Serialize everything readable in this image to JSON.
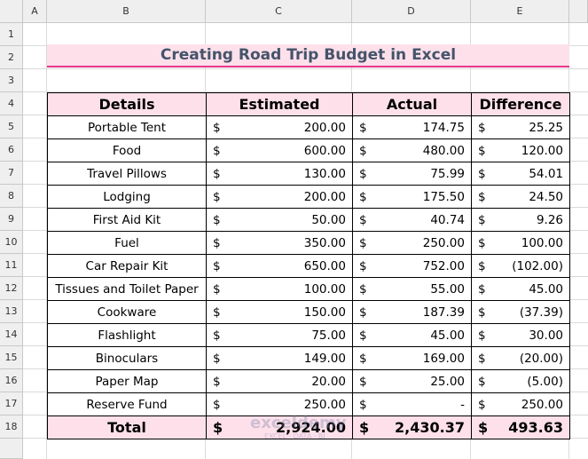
{
  "spreadsheet": {
    "column_headers": [
      "A",
      "B",
      "C",
      "D",
      "E"
    ],
    "row_numbers": [
      1,
      2,
      3,
      4,
      5,
      6,
      7,
      8,
      9,
      10,
      11,
      12,
      13,
      14,
      15,
      16,
      17,
      18
    ]
  },
  "title": "Creating Road Trip Budget in Excel",
  "currency": "$",
  "table": {
    "header": [
      "Details",
      "Estimated",
      "Actual",
      "Difference"
    ],
    "rows": [
      [
        "Portable Tent",
        "200.00",
        "174.75",
        "25.25"
      ],
      [
        "Food",
        "600.00",
        "480.00",
        "120.00"
      ],
      [
        "Travel Pillows",
        "130.00",
        "75.99",
        "54.01"
      ],
      [
        "Lodging",
        "200.00",
        "175.50",
        "24.50"
      ],
      [
        "First Aid Kit",
        "50.00",
        "40.74",
        "9.26"
      ],
      [
        "Fuel",
        "350.00",
        "250.00",
        "100.00"
      ],
      [
        "Car Repair Kit",
        "650.00",
        "752.00",
        "(102.00)"
      ],
      [
        "Tissues and Toilet Paper",
        "100.00",
        "55.00",
        "45.00"
      ],
      [
        "Cookware",
        "150.00",
        "187.39",
        "(37.39)"
      ],
      [
        "Flashlight",
        "75.00",
        "45.00",
        "30.00"
      ],
      [
        "Binoculars",
        "149.00",
        "169.00",
        "(20.00)"
      ],
      [
        "Paper Map",
        "20.00",
        "25.00",
        "(5.00)"
      ],
      [
        "Reserve Fund",
        "250.00",
        "-",
        "250.00"
      ]
    ],
    "total": [
      "Total",
      "2,924.00",
      "2,430.37",
      "493.63"
    ]
  },
  "watermark": {
    "brand": "exceldemy",
    "tagline": "EXCEL · DATA · BI"
  }
}
